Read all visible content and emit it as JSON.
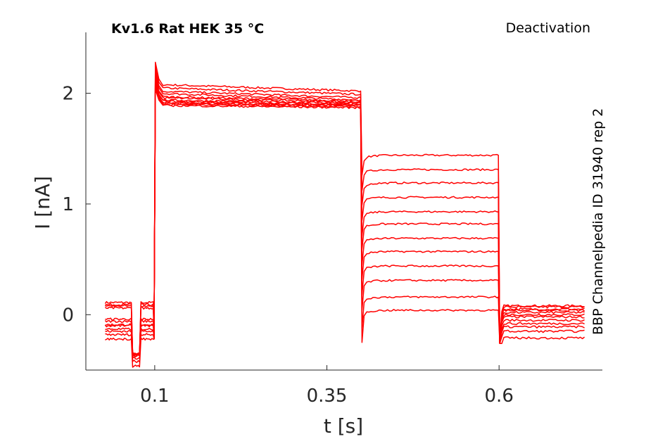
{
  "chart_data": {
    "type": "line",
    "title": "Kv1.6  Rat  HEK  35 °C",
    "annotation_top_right": "Deactivation",
    "annotation_right_vertical": "BBP Channelpedia ID 31940 rep 2",
    "xlabel": "t [s]",
    "ylabel": "I [nA]",
    "xlim": [
      0.0,
      0.75
    ],
    "ylim": [
      -0.5,
      2.55
    ],
    "xticks": [
      0.1,
      0.35,
      0.6
    ],
    "xtick_labels": [
      "0.1",
      "0.35",
      "0.6"
    ],
    "yticks": [
      0,
      1,
      2
    ],
    "ytick_labels": [
      "0",
      "1",
      "2"
    ],
    "grid": false,
    "trace_color": "#ff0000",
    "protocol_times_s": [
      0.028,
      0.1,
      0.4,
      0.6,
      0.725
    ],
    "series": [
      {
        "baseline": 0.11,
        "step": 2.08,
        "step_end": 2.02,
        "tail": 1.44,
        "post": 0.08
      },
      {
        "baseline": 0.09,
        "step": 2.05,
        "step_end": 1.99,
        "tail": 1.31,
        "post": 0.07
      },
      {
        "baseline": 0.08,
        "step": 2.02,
        "step_end": 1.96,
        "tail": 1.19,
        "post": 0.05
      },
      {
        "baseline": 0.06,
        "step": 2.0,
        "step_end": 1.94,
        "tail": 1.06,
        "post": 0.04
      },
      {
        "baseline": -0.04,
        "step": 1.97,
        "step_end": 1.93,
        "tail": 0.93,
        "post": 0.02
      },
      {
        "baseline": -0.06,
        "step": 1.96,
        "step_end": 1.92,
        "tail": 0.82,
        "post": 0.0
      },
      {
        "baseline": -0.09,
        "step": 1.94,
        "step_end": 1.91,
        "tail": 0.69,
        "post": -0.02
      },
      {
        "baseline": -0.1,
        "step": 1.93,
        "step_end": 1.9,
        "tail": 0.57,
        "post": -0.05
      },
      {
        "baseline": -0.13,
        "step": 1.92,
        "step_end": 1.89,
        "tail": 0.44,
        "post": -0.08
      },
      {
        "baseline": -0.15,
        "step": 1.91,
        "step_end": 1.89,
        "tail": 0.31,
        "post": -0.11
      },
      {
        "baseline": -0.18,
        "step": 1.9,
        "step_end": 1.88,
        "tail": 0.16,
        "post": -0.15
      },
      {
        "baseline": -0.22,
        "step": 1.89,
        "step_end": 1.87,
        "tail": 0.04,
        "post": -0.21
      }
    ]
  }
}
